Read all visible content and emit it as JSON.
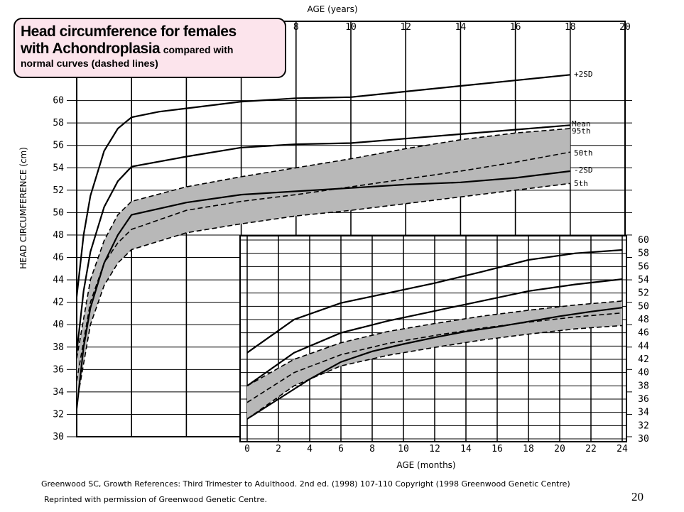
{
  "chart_data": [
    {
      "type": "line",
      "name": "main",
      "title": "Head circumference for females with Achondroplasia compared with normal curves (dashed lines)",
      "title_main": "Head circumference for females",
      "title_line2_bold": "with Achondroplasia",
      "title_line2_small": "compared with",
      "title_line3": "normal curves (dashed lines)",
      "xlabel": "AGE (years)",
      "ylabel": "HEAD CIRCUMFERENCE (cm)",
      "xlim": [
        0,
        20
      ],
      "ylim": [
        30,
        62
      ],
      "x_ticks": [
        8,
        10,
        12,
        14,
        16,
        18,
        20
      ],
      "y_ticks": [
        30,
        32,
        34,
        36,
        38,
        40,
        42,
        44,
        46,
        48,
        50,
        52,
        54,
        56,
        58,
        60
      ],
      "grid": true,
      "series": [
        {
          "name": "+2SD",
          "style": "solid",
          "points": [
            [
              0,
              42.5
            ],
            [
              0.25,
              48
            ],
            [
              0.5,
              51.5
            ],
            [
              1,
              55.5
            ],
            [
              1.5,
              57.5
            ],
            [
              2,
              58.5
            ],
            [
              3,
              59.0
            ],
            [
              4,
              59.3
            ],
            [
              6,
              59.9
            ],
            [
              8,
              60.2
            ],
            [
              10,
              60.3
            ],
            [
              12,
              60.8
            ],
            [
              14,
              61.3
            ],
            [
              16,
              61.8
            ],
            [
              18,
              62.3
            ]
          ]
        },
        {
          "name": "Mean",
          "style": "solid",
          "points": [
            [
              0,
              37.5
            ],
            [
              0.25,
              43
            ],
            [
              0.5,
              46.5
            ],
            [
              1,
              50.5
            ],
            [
              1.5,
              52.8
            ],
            [
              2,
              54.1
            ],
            [
              4,
              55
            ],
            [
              6,
              55.8
            ],
            [
              8,
              56.1
            ],
            [
              10,
              56.2
            ],
            [
              12,
              56.6
            ],
            [
              14,
              57
            ],
            [
              16,
              57.4
            ],
            [
              18,
              57.8
            ]
          ]
        },
        {
          "name": "-2SD",
          "style": "solid",
          "points": [
            [
              0,
              32.5
            ],
            [
              0.25,
              38
            ],
            [
              0.5,
              41.5
            ],
            [
              1,
              45.5
            ],
            [
              1.5,
              48
            ],
            [
              2,
              49.8
            ],
            [
              4,
              50.9
            ],
            [
              6,
              51.6
            ],
            [
              8,
              51.9
            ],
            [
              10,
              52.2
            ],
            [
              12,
              52.5
            ],
            [
              14,
              52.7
            ],
            [
              16,
              53.1
            ],
            [
              18,
              53.7
            ]
          ]
        },
        {
          "name": "95th",
          "style": "dashed",
          "points": [
            [
              0,
              37
            ],
            [
              0.5,
              44
            ],
            [
              1,
              47.5
            ],
            [
              1.5,
              49.8
            ],
            [
              2,
              51
            ],
            [
              4,
              52.3
            ],
            [
              6,
              53.2
            ],
            [
              8,
              54
            ],
            [
              10,
              54.8
            ],
            [
              12,
              55.7
            ],
            [
              14,
              56.5
            ],
            [
              16,
              57.1
            ],
            [
              18,
              57.5
            ]
          ]
        },
        {
          "name": "50th",
          "style": "dashed",
          "points": [
            [
              0,
              35
            ],
            [
              0.5,
              42
            ],
            [
              1,
              45.5
            ],
            [
              1.5,
              47.3
            ],
            [
              2,
              48.5
            ],
            [
              4,
              50.2
            ],
            [
              6,
              51
            ],
            [
              8,
              51.6
            ],
            [
              10,
              52.3
            ],
            [
              12,
              53
            ],
            [
              14,
              53.7
            ],
            [
              16,
              54.5
            ],
            [
              18,
              55.4
            ]
          ]
        },
        {
          "name": "5th",
          "style": "dashed",
          "points": [
            [
              0,
              33
            ],
            [
              0.5,
              40
            ],
            [
              1,
              43.5
            ],
            [
              1.5,
              45.5
            ],
            [
              2,
              46.7
            ],
            [
              4,
              48.2
            ],
            [
              6,
              49
            ],
            [
              8,
              49.7
            ],
            [
              10,
              50.2
            ],
            [
              12,
              50.8
            ],
            [
              14,
              51.4
            ],
            [
              16,
              52
            ],
            [
              18,
              52.6
            ]
          ]
        }
      ]
    },
    {
      "type": "line",
      "name": "inset",
      "xlabel": "AGE (months)",
      "xlim": [
        0,
        24
      ],
      "ylim": [
        30,
        60
      ],
      "x_ticks": [
        0,
        2,
        4,
        6,
        8,
        10,
        12,
        14,
        16,
        18,
        20,
        22,
        24
      ],
      "y_ticks": [
        30,
        32,
        34,
        36,
        38,
        40,
        42,
        44,
        46,
        48,
        50,
        52,
        54,
        56,
        58,
        60
      ],
      "grid": true,
      "series": [
        {
          "name": "+2SD",
          "style": "solid",
          "points": [
            [
              0,
              43
            ],
            [
              3,
              48
            ],
            [
              6,
              50.5
            ],
            [
              9,
              52
            ],
            [
              12,
              53.5
            ],
            [
              15,
              55.2
            ],
            [
              18,
              57
            ],
            [
              21,
              58
            ],
            [
              24,
              58.5
            ]
          ]
        },
        {
          "name": "Mean",
          "style": "solid",
          "points": [
            [
              0,
              38
            ],
            [
              3,
              43
            ],
            [
              6,
              46
            ],
            [
              9,
              47.8
            ],
            [
              12,
              49.3
            ],
            [
              15,
              50.8
            ],
            [
              18,
              52.3
            ],
            [
              21,
              53.3
            ],
            [
              24,
              54.1
            ]
          ]
        },
        {
          "name": "-2SD",
          "style": "solid",
          "points": [
            [
              0,
              33
            ],
            [
              2,
              36
            ],
            [
              4,
              39
            ],
            [
              6,
              41.6
            ],
            [
              8,
              43.2
            ],
            [
              10,
              44.3
            ],
            [
              12,
              45.3
            ],
            [
              14,
              46.2
            ],
            [
              16,
              46.9
            ],
            [
              18,
              47.7
            ],
            [
              20,
              48.5
            ],
            [
              22,
              49.2
            ],
            [
              24,
              49.8
            ]
          ]
        },
        {
          "name": "95th",
          "style": "dashed",
          "points": [
            [
              0,
              38
            ],
            [
              3,
              42
            ],
            [
              6,
              44.5
            ],
            [
              9,
              46.2
            ],
            [
              12,
              47.4
            ],
            [
              15,
              48.5
            ],
            [
              18,
              49.4
            ],
            [
              21,
              50.2
            ],
            [
              24,
              50.8
            ]
          ]
        },
        {
          "name": "50th",
          "style": "dashed",
          "points": [
            [
              0,
              35.5
            ],
            [
              3,
              40
            ],
            [
              6,
              42.7
            ],
            [
              9,
              44.4
            ],
            [
              12,
              45.6
            ],
            [
              15,
              46.7
            ],
            [
              18,
              47.6
            ],
            [
              21,
              48.4
            ],
            [
              24,
              49
            ]
          ]
        },
        {
          "name": "5th",
          "style": "dashed",
          "points": [
            [
              0,
              33
            ],
            [
              3,
              38
            ],
            [
              6,
              41
            ],
            [
              9,
              42.6
            ],
            [
              12,
              43.8
            ],
            [
              15,
              44.9
            ],
            [
              18,
              45.8
            ],
            [
              21,
              46.6
            ],
            [
              24,
              47.1
            ]
          ]
        }
      ]
    }
  ],
  "series_labels": [
    "+2SD",
    "Mean",
    "95th",
    "50th",
    "-2SD",
    "5th"
  ],
  "caption_line1": "Greenwood SC, Growth References: Third Trimester to Adulthood. 2nd ed. (1998) 107-110 Copyright (1998 Greenwood Genetic Centre)",
  "caption_line2": "Reprinted with permission of Greenwood Genetic Centre.",
  "page_number": "20",
  "colors": {
    "band": "#b8b8b8",
    "line": "#000000",
    "title_bg": "#fce4ec"
  }
}
